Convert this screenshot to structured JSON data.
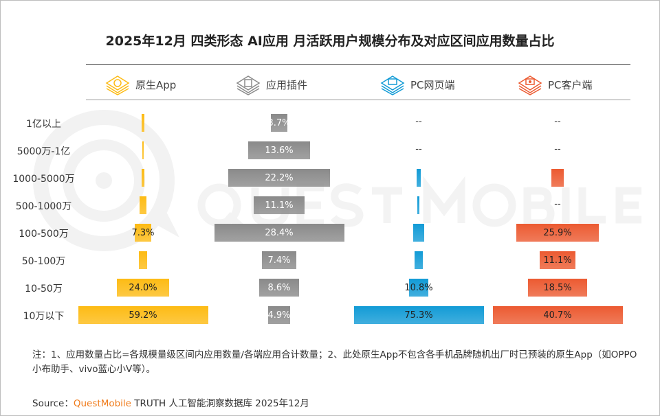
{
  "title": "2025年12月 四类形态 AI应用 月活跃用户规模分布及对应区间应用数量占比",
  "watermark": "QUEST MOBILE",
  "chart_data": {
    "type": "bar",
    "title": "2025年12月 四类形态 AI应用 月活跃用户规模分布及对应区间应用数量占比",
    "categories": [
      "1亿以上",
      "5000万-1亿",
      "1000-5000万",
      "500-1000万",
      "100-500万",
      "50-100万",
      "10-50万",
      "10万以下"
    ],
    "unit": "%",
    "series": [
      {
        "name": "原生App",
        "color": "#fdbb14",
        "icon": "app-icon",
        "values": [
          1.1,
          0.5,
          1.5,
          2.9,
          7.3,
          3.5,
          24.0,
          59.2
        ],
        "labels": [
          null,
          null,
          null,
          null,
          "7.3%",
          null,
          "24.0%",
          "59.2%"
        ]
      },
      {
        "name": "应用插件",
        "color": "#8a8a8a",
        "icon": "ai-plugin-icon",
        "values": [
          3.7,
          13.6,
          22.2,
          11.1,
          28.4,
          7.4,
          8.6,
          4.9
        ],
        "labels": [
          "3.7%",
          "13.6%",
          "22.2%",
          "11.1%",
          "28.4%",
          "7.4%",
          "8.6%",
          "4.9%"
        ]
      },
      {
        "name": "PC网页端",
        "color": "#129bd6",
        "icon": "monitor-icon",
        "values": [
          null,
          null,
          2.0,
          1.2,
          6.3,
          4.4,
          10.8,
          75.3
        ],
        "labels": [
          "--",
          "--",
          null,
          null,
          null,
          null,
          "10.8%",
          "75.3%"
        ]
      },
      {
        "name": "PC客户端",
        "color": "#ec5a31",
        "icon": "laptop-icon",
        "values": [
          null,
          null,
          3.8,
          null,
          25.9,
          11.1,
          18.5,
          40.7
        ],
        "labels": [
          "--",
          "--",
          null,
          "--",
          "25.9%",
          "11.1%",
          "18.5%",
          "40.7%"
        ]
      }
    ]
  },
  "note": "注：1、应用数量占比=各规模量级区间内应用数量/各端应用合计数量；2、此处原生App不包含各手机品牌随机出厂时已预装的原生App（如OPPO小布助手、vivo蓝心小V等）。",
  "source": {
    "prefix": "Source：",
    "brand": "QuestMobile",
    "rest": " TRUTH 人工智能洞察数据库 2025年12月"
  }
}
